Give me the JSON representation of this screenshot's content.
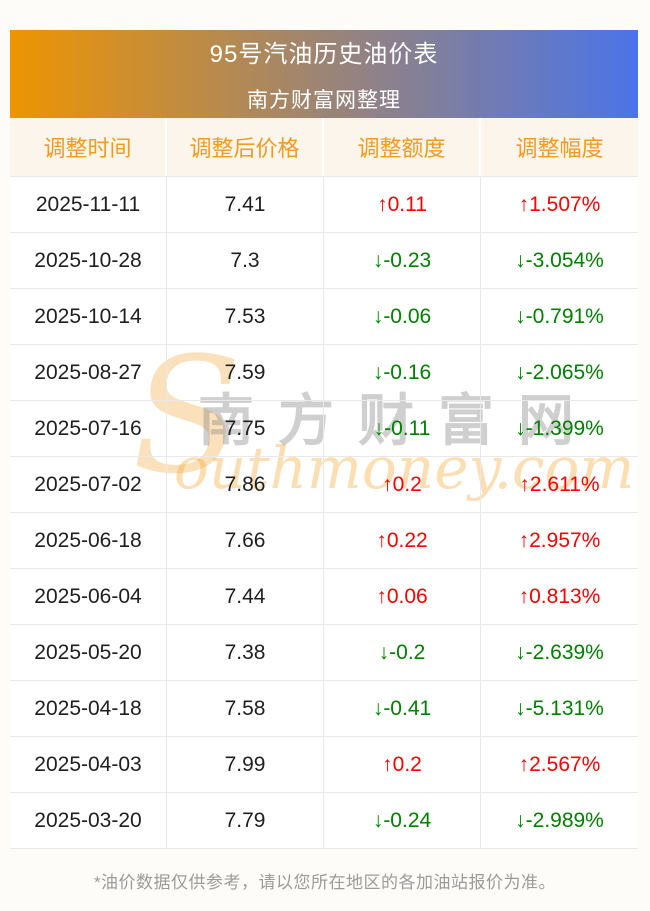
{
  "banner": {
    "title": "95号汽油历史油价表",
    "subtitle": "南方财富网整理"
  },
  "chart_data": {
    "type": "table",
    "title": "95号汽油历史油价表",
    "subtitle": "南方财富网整理",
    "columns": [
      "调整时间",
      "调整后价格",
      "调整额度",
      "调整幅度"
    ],
    "rows": [
      {
        "date": "2025-11-11",
        "price": "7.41",
        "change": "↑0.11",
        "pct": "↑1.507%",
        "direction": "up"
      },
      {
        "date": "2025-10-28",
        "price": "7.3",
        "change": "↓-0.23",
        "pct": "↓-3.054%",
        "direction": "down"
      },
      {
        "date": "2025-10-14",
        "price": "7.53",
        "change": "↓-0.06",
        "pct": "↓-0.791%",
        "direction": "down"
      },
      {
        "date": "2025-08-27",
        "price": "7.59",
        "change": "↓-0.16",
        "pct": "↓-2.065%",
        "direction": "down"
      },
      {
        "date": "2025-07-16",
        "price": "7.75",
        "change": "↓-0.11",
        "pct": "↓-1.399%",
        "direction": "down"
      },
      {
        "date": "2025-07-02",
        "price": "7.86",
        "change": "↑0.2",
        "pct": "↑2.611%",
        "direction": "up"
      },
      {
        "date": "2025-06-18",
        "price": "7.66",
        "change": "↑0.22",
        "pct": "↑2.957%",
        "direction": "up"
      },
      {
        "date": "2025-06-04",
        "price": "7.44",
        "change": "↑0.06",
        "pct": "↑0.813%",
        "direction": "up"
      },
      {
        "date": "2025-05-20",
        "price": "7.38",
        "change": "↓-0.2",
        "pct": "↓-2.639%",
        "direction": "down"
      },
      {
        "date": "2025-04-18",
        "price": "7.58",
        "change": "↓-0.41",
        "pct": "↓-5.131%",
        "direction": "down"
      },
      {
        "date": "2025-04-03",
        "price": "7.99",
        "change": "↑0.2",
        "pct": "↑2.567%",
        "direction": "up"
      },
      {
        "date": "2025-03-20",
        "price": "7.79",
        "change": "↓-0.24",
        "pct": "↓-2.989%",
        "direction": "down"
      }
    ]
  },
  "watermark": {
    "initial": "S",
    "cn": "南方财富网",
    "en": "outhmoney.com"
  },
  "footer": {
    "note": "*油价数据仅供参考，请以您所在地区的各加油站报价为准。"
  },
  "colors": {
    "banner_gradient_from": "#ee9500",
    "banner_gradient_to": "#4b74e9",
    "header_bg": "#fcf5eb",
    "header_text": "#f39a21",
    "up": "#fe0000",
    "down": "#008000",
    "body_text": "#1f1f1f",
    "line": "#e9e9e9",
    "footnote_text": "#9b9b9b",
    "page_bg": "#fdfcf8"
  }
}
